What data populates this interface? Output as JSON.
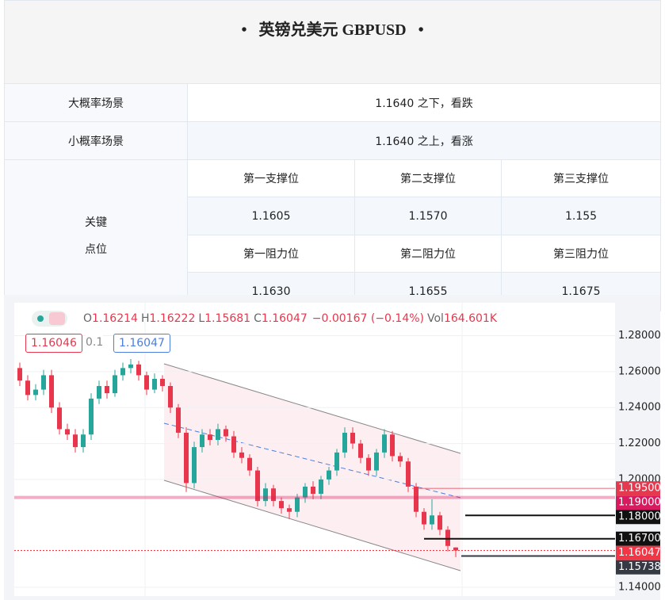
{
  "header": {
    "title": "英镑兑美元 GBPUSD"
  },
  "table": {
    "scenarios": [
      [
        "大概率场景",
        "1.1640 之下，看跌"
      ],
      [
        "小概率场景",
        "1.1640 之上，看涨"
      ]
    ],
    "key_label": [
      "关键",
      "点位"
    ],
    "support_headers": [
      "第一支撑位",
      "第二支撑位",
      "第三支撑位"
    ],
    "support_values": [
      "1.1605",
      "1.1570",
      "1.155"
    ],
    "resistance_headers": [
      "第一阻力位",
      "第二阻力位",
      "第三阻力位"
    ],
    "resistance_values": [
      "1.1630",
      "1.1655",
      "1.1675"
    ]
  },
  "chart_data": {
    "type": "candlestick",
    "ohlc": [
      {
        "label": "O",
        "value": "1.16214"
      },
      {
        "label": "H",
        "value": "1.16222"
      },
      {
        "label": "L",
        "value": "1.15681"
      },
      {
        "label": "C",
        "value": "1.16047"
      }
    ],
    "change": "−0.00167 (−0.14%)",
    "volume": {
      "label": "Vol",
      "value": "164.601K"
    },
    "bid": "1.16046",
    "spread": "0.1",
    "ask": "1.16047",
    "up_color": "#26a69a",
    "down_color": "#e8374c",
    "open": [
      1.262,
      1.255,
      1.247,
      1.25,
      1.258,
      1.24,
      1.228,
      1.225,
      1.218,
      1.225,
      1.245,
      1.252,
      1.248,
      1.258,
      1.262,
      1.264,
      1.258,
      1.25,
      1.256,
      1.252,
      1.24,
      1.226,
      1.198,
      1.218,
      1.225,
      1.222,
      1.228,
      1.224,
      1.215,
      1.212,
      1.205,
      1.188,
      1.195,
      1.188,
      1.184,
      1.182,
      1.19,
      1.196,
      1.192,
      1.2,
      1.205,
      1.215,
      1.226,
      1.22,
      1.212,
      1.205,
      1.215,
      1.225,
      1.213,
      1.21,
      1.196,
      1.182,
      1.175,
      1.18,
      1.172,
      1.16214
    ],
    "high": [
      1.265,
      1.258,
      1.253,
      1.261,
      1.261,
      1.243,
      1.231,
      1.228,
      1.228,
      1.248,
      1.255,
      1.255,
      1.261,
      1.265,
      1.267,
      1.266,
      1.26,
      1.259,
      1.258,
      1.254,
      1.242,
      1.229,
      1.221,
      1.228,
      1.228,
      1.231,
      1.23,
      1.227,
      1.218,
      1.214,
      1.207,
      1.198,
      1.197,
      1.19,
      1.186,
      1.192,
      1.198,
      1.199,
      1.202,
      1.207,
      1.217,
      1.229,
      1.229,
      1.222,
      1.214,
      1.217,
      1.228,
      1.227,
      1.215,
      1.212,
      1.198,
      1.184,
      1.189,
      1.182,
      1.174,
      1.16222
    ],
    "low": [
      1.252,
      1.244,
      1.244,
      1.247,
      1.237,
      1.225,
      1.222,
      1.215,
      1.215,
      1.222,
      1.242,
      1.245,
      1.246,
      1.255,
      1.259,
      1.255,
      1.247,
      1.248,
      1.249,
      1.237,
      1.223,
      1.193,
      1.195,
      1.215,
      1.219,
      1.219,
      1.221,
      1.212,
      1.209,
      1.202,
      1.185,
      1.185,
      1.185,
      1.181,
      1.178,
      1.179,
      1.187,
      1.189,
      1.189,
      1.197,
      1.202,
      1.212,
      1.217,
      1.209,
      1.202,
      1.202,
      1.212,
      1.21,
      1.207,
      1.193,
      1.179,
      1.172,
      1.172,
      1.169,
      1.16,
      1.15681
    ],
    "close": [
      1.255,
      1.247,
      1.25,
      1.258,
      1.24,
      1.228,
      1.225,
      1.218,
      1.225,
      1.245,
      1.252,
      1.248,
      1.258,
      1.262,
      1.264,
      1.258,
      1.25,
      1.256,
      1.252,
      1.24,
      1.226,
      1.198,
      1.218,
      1.225,
      1.222,
      1.228,
      1.224,
      1.215,
      1.212,
      1.205,
      1.188,
      1.195,
      1.188,
      1.184,
      1.182,
      1.19,
      1.196,
      1.192,
      1.2,
      1.205,
      1.215,
      1.226,
      1.22,
      1.212,
      1.205,
      1.215,
      1.225,
      1.213,
      1.21,
      1.196,
      1.182,
      1.175,
      1.18,
      1.172,
      1.163,
      1.16047
    ],
    "ylim": [
      1.136,
      1.297
    ],
    "yticks": [
      {
        "value": 1.28,
        "label": "1.28000"
      },
      {
        "value": 1.26,
        "label": "1.26000"
      },
      {
        "value": 1.24,
        "label": "1.24000"
      },
      {
        "value": 1.22,
        "label": "1.22000"
      },
      {
        "value": 1.2,
        "label": "1.20000"
      },
      {
        "value": 1.14,
        "label": "1.14000"
      }
    ],
    "grid": true,
    "levels": [
      {
        "value": 1.195,
        "label": "1.19500",
        "color": "#e53950"
      },
      {
        "value": 1.19,
        "label": "1.19000",
        "color": "#d81b60"
      },
      {
        "value": 1.18,
        "label": "1.18000",
        "color": "#111111"
      },
      {
        "value": 1.167,
        "label": "1.16700",
        "color": "#111111"
      },
      {
        "value": 1.16047,
        "label": "1.16047",
        "color": "#f23645"
      },
      {
        "value": 1.15738,
        "label": "1.15738",
        "color": "#363a45"
      }
    ]
  }
}
